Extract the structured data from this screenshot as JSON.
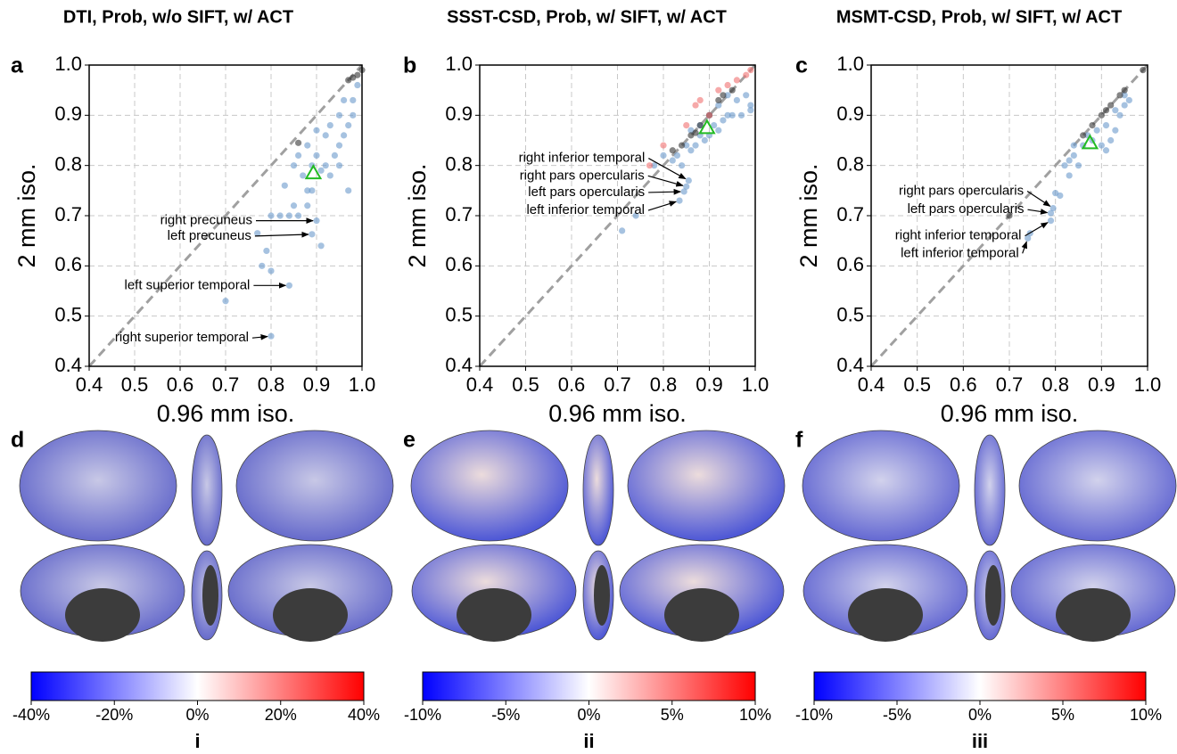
{
  "chart_data": [
    {
      "type": "scatter",
      "panel": "a",
      "title": "DTI, Prob, w/o SIFT, w/ ACT",
      "xlabel": "0.96 mm iso.",
      "ylabel": "2 mm iso.",
      "xlim": [
        0.4,
        1.0
      ],
      "ylim": [
        0.4,
        1.0
      ],
      "xticks": [
        0.4,
        0.5,
        0.6,
        0.7,
        0.8,
        0.9,
        {
          "value": 1.0,
          "label": "1.0"
        }
      ],
      "yticks": [
        0.4,
        0.5,
        0.6,
        0.7,
        0.8,
        0.9,
        {
          "value": 1.0,
          "label": "1.0"
        }
      ],
      "grid": true,
      "series": [
        {
          "color": "#6a9acb",
          "x": [
            0.8,
            0.7,
            0.84,
            0.78,
            0.8,
            0.79,
            0.77,
            0.89,
            0.9,
            0.91,
            0.8,
            0.82,
            0.84,
            0.86,
            0.85,
            0.88,
            0.83,
            0.85,
            0.87,
            0.88,
            0.89,
            0.9,
            0.91,
            0.92,
            0.93,
            0.94,
            0.92,
            0.93,
            0.95,
            0.95,
            0.96,
            0.97,
            0.97,
            0.98,
            0.96,
            0.99,
            0.98,
            0.95,
            0.9,
            0.88,
            0.86,
            0.89
          ],
          "values": [
            0.46,
            0.53,
            0.561,
            0.6,
            0.59,
            0.63,
            0.665,
            0.663,
            0.69,
            0.64,
            0.7,
            0.7,
            0.7,
            0.7,
            0.72,
            0.72,
            0.76,
            0.8,
            0.78,
            0.75,
            0.8,
            0.82,
            0.79,
            0.8,
            0.78,
            0.82,
            0.86,
            0.88,
            0.84,
            0.9,
            0.86,
            0.88,
            0.75,
            0.93,
            0.93,
            0.96,
            0.9,
            0.8,
            0.87,
            0.84,
            0.82,
            0.75
          ]
        },
        {
          "color": "#333333",
          "x": [
            0.86,
            0.98,
            0.99,
            1.0,
            0.97
          ],
          "values": [
            0.845,
            0.975,
            0.98,
            0.99,
            0.97
          ]
        },
        {
          "color": "#22bb22",
          "marker": "triangle",
          "x": [
            0.893
          ],
          "values": [
            0.785
          ]
        }
      ],
      "annotations": [
        {
          "text": "right precuneus",
          "x": 0.9,
          "y": 0.69
        },
        {
          "text": "left precuneus",
          "x": 0.89,
          "y": 0.663
        },
        {
          "text": "left superior temporal",
          "x": 0.84,
          "y": 0.561
        },
        {
          "text": "right superior temporal",
          "x": 0.8,
          "y": 0.46
        }
      ]
    },
    {
      "type": "scatter",
      "panel": "b",
      "title": "SSST-CSD, Prob, w/ SIFT, w/ ACT",
      "xlabel": "0.96 mm iso.",
      "ylabel": "2 mm iso.",
      "xlim": [
        0.4,
        1.0
      ],
      "ylim": [
        0.4,
        1.0
      ],
      "xticks": [
        0.4,
        0.5,
        0.6,
        0.7,
        0.8,
        0.9,
        {
          "value": 1.0,
          "label": "1.0"
        }
      ],
      "yticks": [
        0.4,
        0.5,
        0.6,
        0.7,
        0.8,
        0.9,
        {
          "value": 1.0,
          "label": "1.0"
        }
      ],
      "grid": true,
      "series": [
        {
          "color": "#6a9acb",
          "x": [
            0.71,
            0.74,
            0.835,
            0.845,
            0.85,
            0.855,
            0.78,
            0.8,
            0.82,
            0.84,
            0.86,
            0.87,
            0.88,
            0.89,
            0.9,
            0.91,
            0.92,
            0.93,
            0.94,
            0.95,
            0.96,
            0.97,
            0.98,
            0.99,
            0.99,
            0.86,
            0.88,
            0.9,
            0.92,
            0.94,
            0.83,
            0.85
          ],
          "values": [
            0.67,
            0.7,
            0.73,
            0.748,
            0.758,
            0.77,
            0.8,
            0.82,
            0.81,
            0.8,
            0.83,
            0.84,
            0.86,
            0.85,
            0.86,
            0.88,
            0.87,
            0.89,
            0.9,
            0.9,
            0.93,
            0.9,
            0.94,
            0.91,
            0.92,
            0.87,
            0.88,
            0.9,
            0.92,
            0.94,
            0.82,
            0.84
          ]
        },
        {
          "color": "#333333",
          "x": [
            0.82,
            0.84,
            0.86,
            0.87,
            0.88,
            0.9,
            0.92,
            0.93,
            0.95
          ],
          "values": [
            0.83,
            0.84,
            0.86,
            0.865,
            0.88,
            0.9,
            0.93,
            0.94,
            0.95
          ]
        },
        {
          "color": "#f07070",
          "x": [
            0.77,
            0.8,
            0.87,
            0.88,
            0.9,
            0.92,
            0.94,
            0.96,
            0.98,
            0.99,
            0.85
          ],
          "values": [
            0.8,
            0.84,
            0.92,
            0.93,
            0.9,
            0.95,
            0.96,
            0.97,
            0.98,
            0.99,
            0.88
          ]
        },
        {
          "color": "#22bb22",
          "marker": "triangle",
          "x": [
            0.895
          ],
          "values": [
            0.875
          ]
        }
      ],
      "annotations": [
        {
          "text": "right inferior temporal",
          "x": 0.855,
          "y": 0.77
        },
        {
          "text": "right pars opercularis",
          "x": 0.85,
          "y": 0.758
        },
        {
          "text": "left pars opercularis",
          "x": 0.845,
          "y": 0.748
        },
        {
          "text": "left  inferior temporal",
          "x": 0.835,
          "y": 0.73
        }
      ]
    },
    {
      "type": "scatter",
      "panel": "c",
      "title": "MSMT-CSD, Prob, w/ SIFT, w/ ACT",
      "xlabel": "0.96 mm iso.",
      "ylabel": "2 mm iso.",
      "xlim": [
        0.4,
        1.0
      ],
      "ylim": [
        0.4,
        1.0
      ],
      "xticks": [
        0.4,
        0.5,
        0.6,
        0.7,
        0.8,
        0.9,
        {
          "value": 1.0,
          "label": "1.0"
        }
      ],
      "yticks": [
        0.4,
        0.5,
        0.6,
        0.7,
        0.8,
        0.9,
        {
          "value": 1.0,
          "label": "1.0"
        }
      ],
      "grid": true,
      "series": [
        {
          "color": "#6a9acb",
          "x": [
            0.74,
            0.745,
            0.79,
            0.79,
            0.795,
            0.8,
            0.81,
            0.82,
            0.83,
            0.84,
            0.84,
            0.85,
            0.86,
            0.87,
            0.88,
            0.89,
            0.9,
            0.91,
            0.92,
            0.93,
            0.94,
            0.95,
            0.96,
            0.95,
            0.91,
            0.93,
            0.83
          ],
          "values": [
            0.655,
            0.665,
            0.69,
            0.705,
            0.715,
            0.745,
            0.74,
            0.8,
            0.78,
            0.82,
            0.84,
            0.8,
            0.84,
            0.86,
            0.85,
            0.87,
            0.84,
            0.83,
            0.85,
            0.87,
            0.9,
            0.92,
            0.93,
            0.94,
            0.88,
            0.91,
            0.81
          ]
        },
        {
          "color": "#333333",
          "x": [
            0.7,
            0.86,
            0.88,
            0.9,
            0.91,
            0.92,
            0.94,
            0.95,
            0.99
          ],
          "values": [
            0.7,
            0.86,
            0.88,
            0.9,
            0.91,
            0.92,
            0.94,
            0.95,
            0.99
          ]
        },
        {
          "color": "#22bb22",
          "marker": "triangle",
          "x": [
            0.875
          ],
          "values": [
            0.845
          ]
        }
      ],
      "annotations": [
        {
          "text": "right pars opercularis",
          "x": 0.795,
          "y": 0.715
        },
        {
          "text": "left pars opercularis",
          "x": 0.79,
          "y": 0.705
        },
        {
          "text": "right inferior temporal",
          "x": 0.79,
          "y": 0.69
        },
        {
          "text": "left inferior temporal",
          "x": 0.74,
          "y": 0.655
        }
      ]
    },
    {
      "type": "colorbar",
      "panel": "d",
      "label": "i",
      "colors": [
        "#0000ff",
        "#ffffff",
        "#ff0000"
      ],
      "xlim": [
        -40,
        40
      ],
      "xticks": [
        {
          "value": -40,
          "label": "-40%"
        },
        {
          "value": -20,
          "label": "-20%"
        },
        {
          "value": 0,
          "label": "0%"
        },
        {
          "value": 20,
          "label": "20%"
        },
        {
          "value": 40,
          "label": "40%"
        }
      ]
    },
    {
      "type": "colorbar",
      "panel": "e",
      "label": "ii",
      "colors": [
        "#0000ff",
        "#ffffff",
        "#ff0000"
      ],
      "xlim": [
        -10,
        10
      ],
      "xticks": [
        {
          "value": -10,
          "label": "-10%"
        },
        {
          "value": -5,
          "label": "-5%"
        },
        {
          "value": 0,
          "label": "0%"
        },
        {
          "value": 5,
          "label": "5%"
        },
        {
          "value": 10,
          "label": "10%"
        }
      ]
    },
    {
      "type": "colorbar",
      "panel": "f",
      "label": "iii",
      "colors": [
        "#0000ff",
        "#ffffff",
        "#ff0000"
      ],
      "xlim": [
        -10,
        10
      ],
      "xticks": [
        {
          "value": -10,
          "label": "-10%"
        },
        {
          "value": -5,
          "label": "-5%"
        },
        {
          "value": 0,
          "label": "0%"
        },
        {
          "value": 5,
          "label": "5%"
        },
        {
          "value": 10,
          "label": "10%"
        }
      ]
    }
  ]
}
